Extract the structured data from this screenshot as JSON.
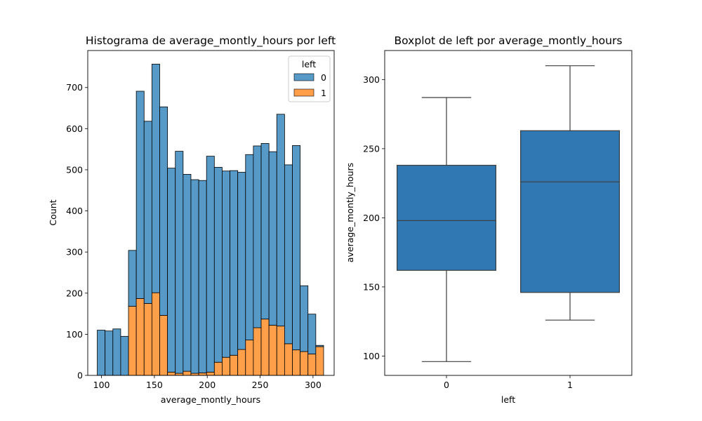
{
  "chart_data": [
    {
      "type": "histogram",
      "title": "Histograma de average_montly_hours por left",
      "xlabel": "average_montly_hours",
      "ylabel": "Count",
      "xlim": [
        87,
        320
      ],
      "ylim": [
        0,
        790
      ],
      "xticks": [
        100,
        150,
        200,
        250,
        300
      ],
      "yticks": [
        0,
        100,
        200,
        300,
        400,
        500,
        600,
        700
      ],
      "multiple": "stack",
      "bins": {
        "start": 96,
        "width": 7.38,
        "count": 29
      },
      "series": [
        {
          "name": "0",
          "color": "#1f77b4",
          "values": [
            110,
            108,
            113,
            95,
            136,
            504,
            443,
            556,
            507,
            496,
            540,
            479,
            471,
            468,
            525,
            474,
            453,
            449,
            431,
            451,
            442,
            427,
            422,
            515,
            435,
            497,
            160,
            97,
            3
          ]
        },
        {
          "name": "1",
          "color": "#ff7f0e",
          "values": [
            0,
            0,
            0,
            0,
            168,
            187,
            175,
            201,
            146,
            8,
            5,
            10,
            5,
            6,
            8,
            32,
            44,
            49,
            63,
            86,
            116,
            137,
            122,
            120,
            77,
            62,
            58,
            52,
            70
          ]
        }
      ],
      "legend": {
        "title": "left",
        "placement": "upper right",
        "entries": [
          "0",
          "1"
        ]
      }
    },
    {
      "type": "box",
      "title": "Boxplot de left por average_montly_hours",
      "xlabel": "left",
      "ylabel": "average_montly_hours",
      "categories": [
        "0",
        "1"
      ],
      "ylim": [
        86,
        321
      ],
      "yticks": [
        100,
        150,
        200,
        250,
        300
      ],
      "color": "#2f78b3",
      "boxes": [
        {
          "category": "0",
          "whisker_low": 96,
          "q1": 162,
          "median": 198,
          "q3": 238,
          "whisker_high": 287
        },
        {
          "category": "1",
          "whisker_low": 126,
          "q1": 146,
          "median": 226,
          "q3": 263,
          "whisker_high": 310
        }
      ]
    }
  ]
}
